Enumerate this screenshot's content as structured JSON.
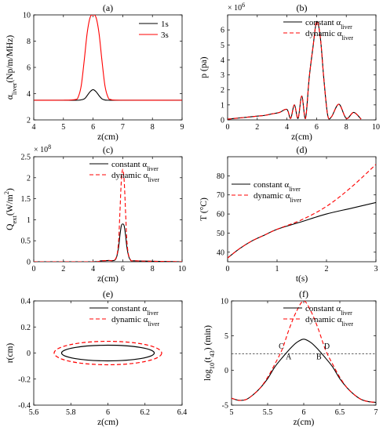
{
  "colors": {
    "black": "#000000",
    "red": "#ff0000",
    "dashed_ref": "#333333"
  },
  "chart_data": [
    {
      "id": "a",
      "type": "line",
      "panel_label": "(a)",
      "xlabel": "z(cm)",
      "ylabel_main": "α",
      "ylabel_sub": "liver",
      "ylabel_unit": "(Np/m/MHz)",
      "xlim": [
        4,
        9
      ],
      "ylim": [
        2,
        10
      ],
      "xticks": [
        4,
        5,
        6,
        7,
        8,
        9
      ],
      "yticks": [
        2,
        4,
        6,
        8,
        10
      ],
      "legend_position": "top-right",
      "series": [
        {
          "name": "1s",
          "color": "#000000",
          "dash": "solid",
          "x": [
            4,
            5,
            5.5,
            5.7,
            5.8,
            5.9,
            6.0,
            6.1,
            6.2,
            6.3,
            6.4,
            6.5,
            7,
            9
          ],
          "y": [
            3.5,
            3.5,
            3.5,
            3.6,
            3.85,
            4.15,
            4.3,
            4.15,
            3.85,
            3.6,
            3.52,
            3.5,
            3.5,
            3.5
          ]
        },
        {
          "name": "3s",
          "color": "#ff0000",
          "dash": "solid",
          "x": [
            4,
            5,
            5.4,
            5.5,
            5.6,
            5.7,
            5.8,
            5.9,
            6.0,
            6.1,
            6.2,
            6.3,
            6.4,
            6.5,
            6.6,
            7,
            9
          ],
          "y": [
            3.5,
            3.5,
            3.55,
            3.75,
            4.6,
            6.5,
            8.6,
            9.8,
            10.0,
            9.8,
            8.6,
            6.5,
            4.6,
            3.75,
            3.55,
            3.5,
            3.5
          ]
        }
      ]
    },
    {
      "id": "b",
      "type": "line",
      "panel_label": "(b)",
      "xlabel": "z(cm)",
      "ylabel_main": "p (pa)",
      "multiplier": "× 10",
      "multiplier_exp": "6",
      "xlim": [
        0,
        10
      ],
      "ylim": [
        0,
        7
      ],
      "xticks": [
        0,
        2,
        4,
        6,
        8,
        10
      ],
      "yticks": [
        0,
        1,
        2,
        3,
        4,
        5,
        6
      ],
      "legend_position": "top-right",
      "series": [
        {
          "name": "constant",
          "name_sub": "liver",
          "color": "#000000",
          "dash": "solid",
          "x": [
            0,
            0.5,
            1,
            1.5,
            2,
            2.5,
            3,
            3.5,
            4,
            4.25,
            4.5,
            4.75,
            5,
            5.25,
            5.5,
            5.75,
            6,
            6.25,
            6.5,
            6.75,
            7,
            7.5,
            8,
            8.5,
            9
          ],
          "y": [
            0.05,
            0.1,
            0.15,
            0.2,
            0.25,
            0.3,
            0.4,
            0.5,
            0.7,
            0.1,
            1.0,
            0.1,
            1.6,
            0.1,
            2.8,
            4.8,
            6.55,
            5.5,
            2.6,
            0.3,
            0.2,
            1.05,
            0.1,
            0.5,
            0.05
          ]
        },
        {
          "name": "dynamic",
          "name_sub": "liver",
          "color": "#ff0000",
          "dash": "dashed",
          "x": [
            0,
            0.5,
            1,
            1.5,
            2,
            2.5,
            3,
            3.5,
            4,
            4.25,
            4.5,
            4.75,
            5,
            5.25,
            5.5,
            5.75,
            6,
            6.25,
            6.5,
            6.75,
            7,
            7.5,
            8,
            8.5,
            9
          ],
          "y": [
            0.05,
            0.1,
            0.15,
            0.2,
            0.25,
            0.3,
            0.4,
            0.5,
            0.7,
            0.1,
            1.0,
            0.1,
            1.6,
            0.1,
            2.8,
            4.8,
            6.55,
            5.5,
            2.6,
            0.3,
            0.2,
            1.05,
            0.1,
            0.5,
            0.05
          ]
        }
      ]
    },
    {
      "id": "c",
      "type": "line",
      "panel_label": "(c)",
      "xlabel": "z(cm)",
      "ylabel_main": "Q",
      "ylabel_sub": "ext",
      "ylabel_unit": "(W/m",
      "ylabel_unit_sup": "2",
      "ylabel_unit_end": ")",
      "multiplier": "× 10",
      "multiplier_exp": "8",
      "xlim": [
        0,
        10
      ],
      "ylim": [
        0,
        2.5
      ],
      "xticks": [
        0,
        2,
        4,
        6,
        8,
        10
      ],
      "yticks": [
        0,
        0.5,
        1,
        1.5,
        2,
        2.5
      ],
      "legend_position": "top-right",
      "series": [
        {
          "name": "constant",
          "name_sub": "liver",
          "color": "#000000",
          "dash": "solid",
          "x": [
            0,
            4,
            4.5,
            5,
            5.5,
            5.7,
            5.8,
            5.9,
            6.0,
            6.1,
            6.2,
            6.3,
            6.5,
            7,
            10
          ],
          "y": [
            0,
            0,
            0.02,
            0.03,
            0.05,
            0.3,
            0.6,
            0.85,
            0.9,
            0.85,
            0.6,
            0.3,
            0.05,
            0.02,
            0
          ]
        },
        {
          "name": "dynamic",
          "name_sub": "liver",
          "color": "#ff0000",
          "dash": "dashed",
          "x": [
            0,
            4,
            4.5,
            5,
            5.5,
            5.7,
            5.8,
            5.9,
            6.0,
            6.1,
            6.2,
            6.3,
            6.5,
            7,
            10
          ],
          "y": [
            0,
            0,
            0.02,
            0.03,
            0.06,
            0.4,
            1.1,
            1.9,
            2.2,
            1.9,
            1.1,
            0.4,
            0.06,
            0.02,
            0
          ]
        }
      ]
    },
    {
      "id": "d",
      "type": "line",
      "panel_label": "(d)",
      "xlabel": "t(s)",
      "ylabel_main": "T (°C)",
      "xlim": [
        0,
        3
      ],
      "ylim": [
        35,
        90
      ],
      "xticks": [
        0,
        1,
        2,
        3
      ],
      "yticks": [
        40,
        50,
        60,
        70,
        80
      ],
      "legend_position": "center",
      "series": [
        {
          "name": "constant",
          "name_sub": "liver",
          "color": "#000000",
          "dash": "solid",
          "x": [
            0,
            0.25,
            0.5,
            0.75,
            1,
            1.5,
            2,
            2.5,
            3
          ],
          "y": [
            37,
            42,
            46,
            49,
            52,
            56,
            60,
            63,
            66
          ]
        },
        {
          "name": "dynamic",
          "name_sub": "liver",
          "color": "#ff0000",
          "dash": "dashed",
          "x": [
            0,
            0.25,
            0.5,
            0.75,
            1,
            1.5,
            2,
            2.5,
            3
          ],
          "y": [
            37,
            42,
            46,
            49,
            52,
            57,
            64,
            74,
            86
          ]
        }
      ]
    },
    {
      "id": "e",
      "type": "line",
      "panel_label": "(e)",
      "xlabel": "z(cm)",
      "ylabel_main": "r(cm)",
      "xlim": [
        5.6,
        6.4
      ],
      "ylim": [
        -0.4,
        0.4
      ],
      "xticks": [
        5.6,
        5.8,
        6,
        6.2,
        6.4
      ],
      "yticks": [
        -0.4,
        -0.2,
        0,
        0.2,
        0.4
      ],
      "legend_position": "top-right",
      "series": [
        {
          "name": "constant",
          "name_sub": "liver",
          "color": "#000000",
          "dash": "solid",
          "shape": "ellipse",
          "center": [
            6,
            0
          ],
          "semi_axes": [
            0.25,
            0.06
          ]
        },
        {
          "name": "dynamic",
          "name_sub": "liver",
          "color": "#ff0000",
          "dash": "dashed",
          "shape": "ellipse",
          "center": [
            6,
            0
          ],
          "semi_axes": [
            0.29,
            0.09
          ]
        }
      ]
    },
    {
      "id": "f",
      "type": "line",
      "panel_label": "(f)",
      "xlabel": "z(cm)",
      "ylabel_main": "log",
      "ylabel_sub": "10",
      "ylabel_mid": "(t",
      "ylabel_sub2": "43",
      "ylabel_unit": ") (min)",
      "xlim": [
        5,
        7
      ],
      "ylim": [
        -5,
        10
      ],
      "xticks": [
        5,
        5.5,
        6,
        6.5,
        7
      ],
      "yticks": [
        -5,
        0,
        5,
        10
      ],
      "legend_position": "top-right",
      "reference_y": 2.4,
      "annotations": [
        {
          "text": "C",
          "x": 5.69,
          "y": 3.1
        },
        {
          "text": "A",
          "x": 5.79,
          "y": 1.6
        },
        {
          "text": "B",
          "x": 6.21,
          "y": 1.6
        },
        {
          "text": "D",
          "x": 6.32,
          "y": 3.1
        }
      ],
      "series": [
        {
          "name": "constant",
          "name_sub": "liver",
          "color": "#000000",
          "dash": "solid",
          "x": [
            5,
            5.1,
            5.2,
            5.3,
            5.4,
            5.5,
            5.6,
            5.7,
            5.8,
            5.9,
            6.0,
            6.1,
            6.2,
            6.3,
            6.4,
            6.5,
            6.6,
            6.7,
            6.8,
            6.9,
            7
          ],
          "y": [
            -4.0,
            -4.3,
            -4.2,
            -3.5,
            -2.5,
            -1.2,
            0.5,
            1.8,
            3.0,
            4.0,
            4.5,
            4.0,
            3.0,
            1.8,
            0.5,
            -1.2,
            -2.5,
            -3.5,
            -4.2,
            -4.5,
            -4.6
          ]
        },
        {
          "name": "dynamic",
          "name_sub": "liver",
          "color": "#ff0000",
          "dash": "dashed",
          "x": [
            5,
            5.1,
            5.2,
            5.3,
            5.4,
            5.5,
            5.6,
            5.7,
            5.8,
            5.9,
            6.0,
            6.1,
            6.2,
            6.3,
            6.4,
            6.5,
            6.6,
            6.7,
            6.8,
            6.9,
            7
          ],
          "y": [
            -4.0,
            -4.3,
            -4.2,
            -3.5,
            -2.5,
            -1.0,
            0.9,
            3.0,
            6.0,
            8.5,
            10.0,
            8.5,
            6.0,
            3.0,
            0.9,
            -1.0,
            -2.5,
            -3.5,
            -4.2,
            -4.5,
            -4.6
          ]
        }
      ]
    }
  ]
}
